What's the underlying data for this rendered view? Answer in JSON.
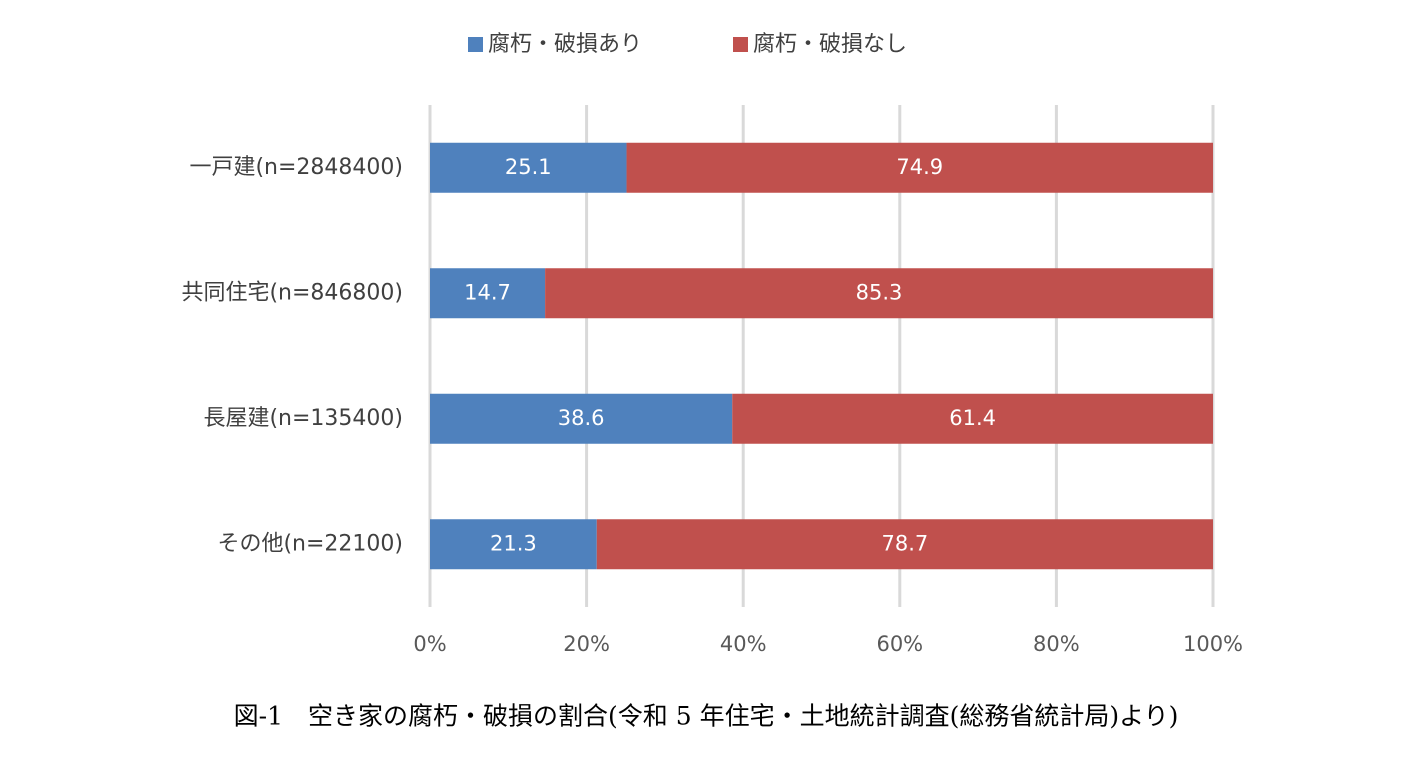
{
  "chart_data": {
    "type": "stacked_bar_horizontal",
    "title": "図-1　空き家の腐朽・破損の割合(令和 5 年住宅・土地統計調査(総務省統計局)より)",
    "categories": [
      "一戸建(n=2848400)",
      "共同住宅(n=846800)",
      "長屋建(n=135400)",
      "その他(n=22100)"
    ],
    "series": [
      {
        "name": "腐朽・破損あり",
        "color": "#4f81bd",
        "values": [
          25.1,
          14.7,
          38.6,
          21.3
        ]
      },
      {
        "name": "腐朽・破損なし",
        "color": "#c0504d",
        "values": [
          74.9,
          85.3,
          61.4,
          78.7
        ]
      }
    ],
    "xlim": [
      0,
      100
    ],
    "xticks": [
      {
        "value": 0,
        "label": "0%"
      },
      {
        "value": 20,
        "label": "20%"
      },
      {
        "value": 40,
        "label": "40%"
      },
      {
        "value": 60,
        "label": "60%"
      },
      {
        "value": 80,
        "label": "80%"
      },
      {
        "value": 100,
        "label": "100%"
      }
    ],
    "grid": true,
    "legend": "top"
  }
}
